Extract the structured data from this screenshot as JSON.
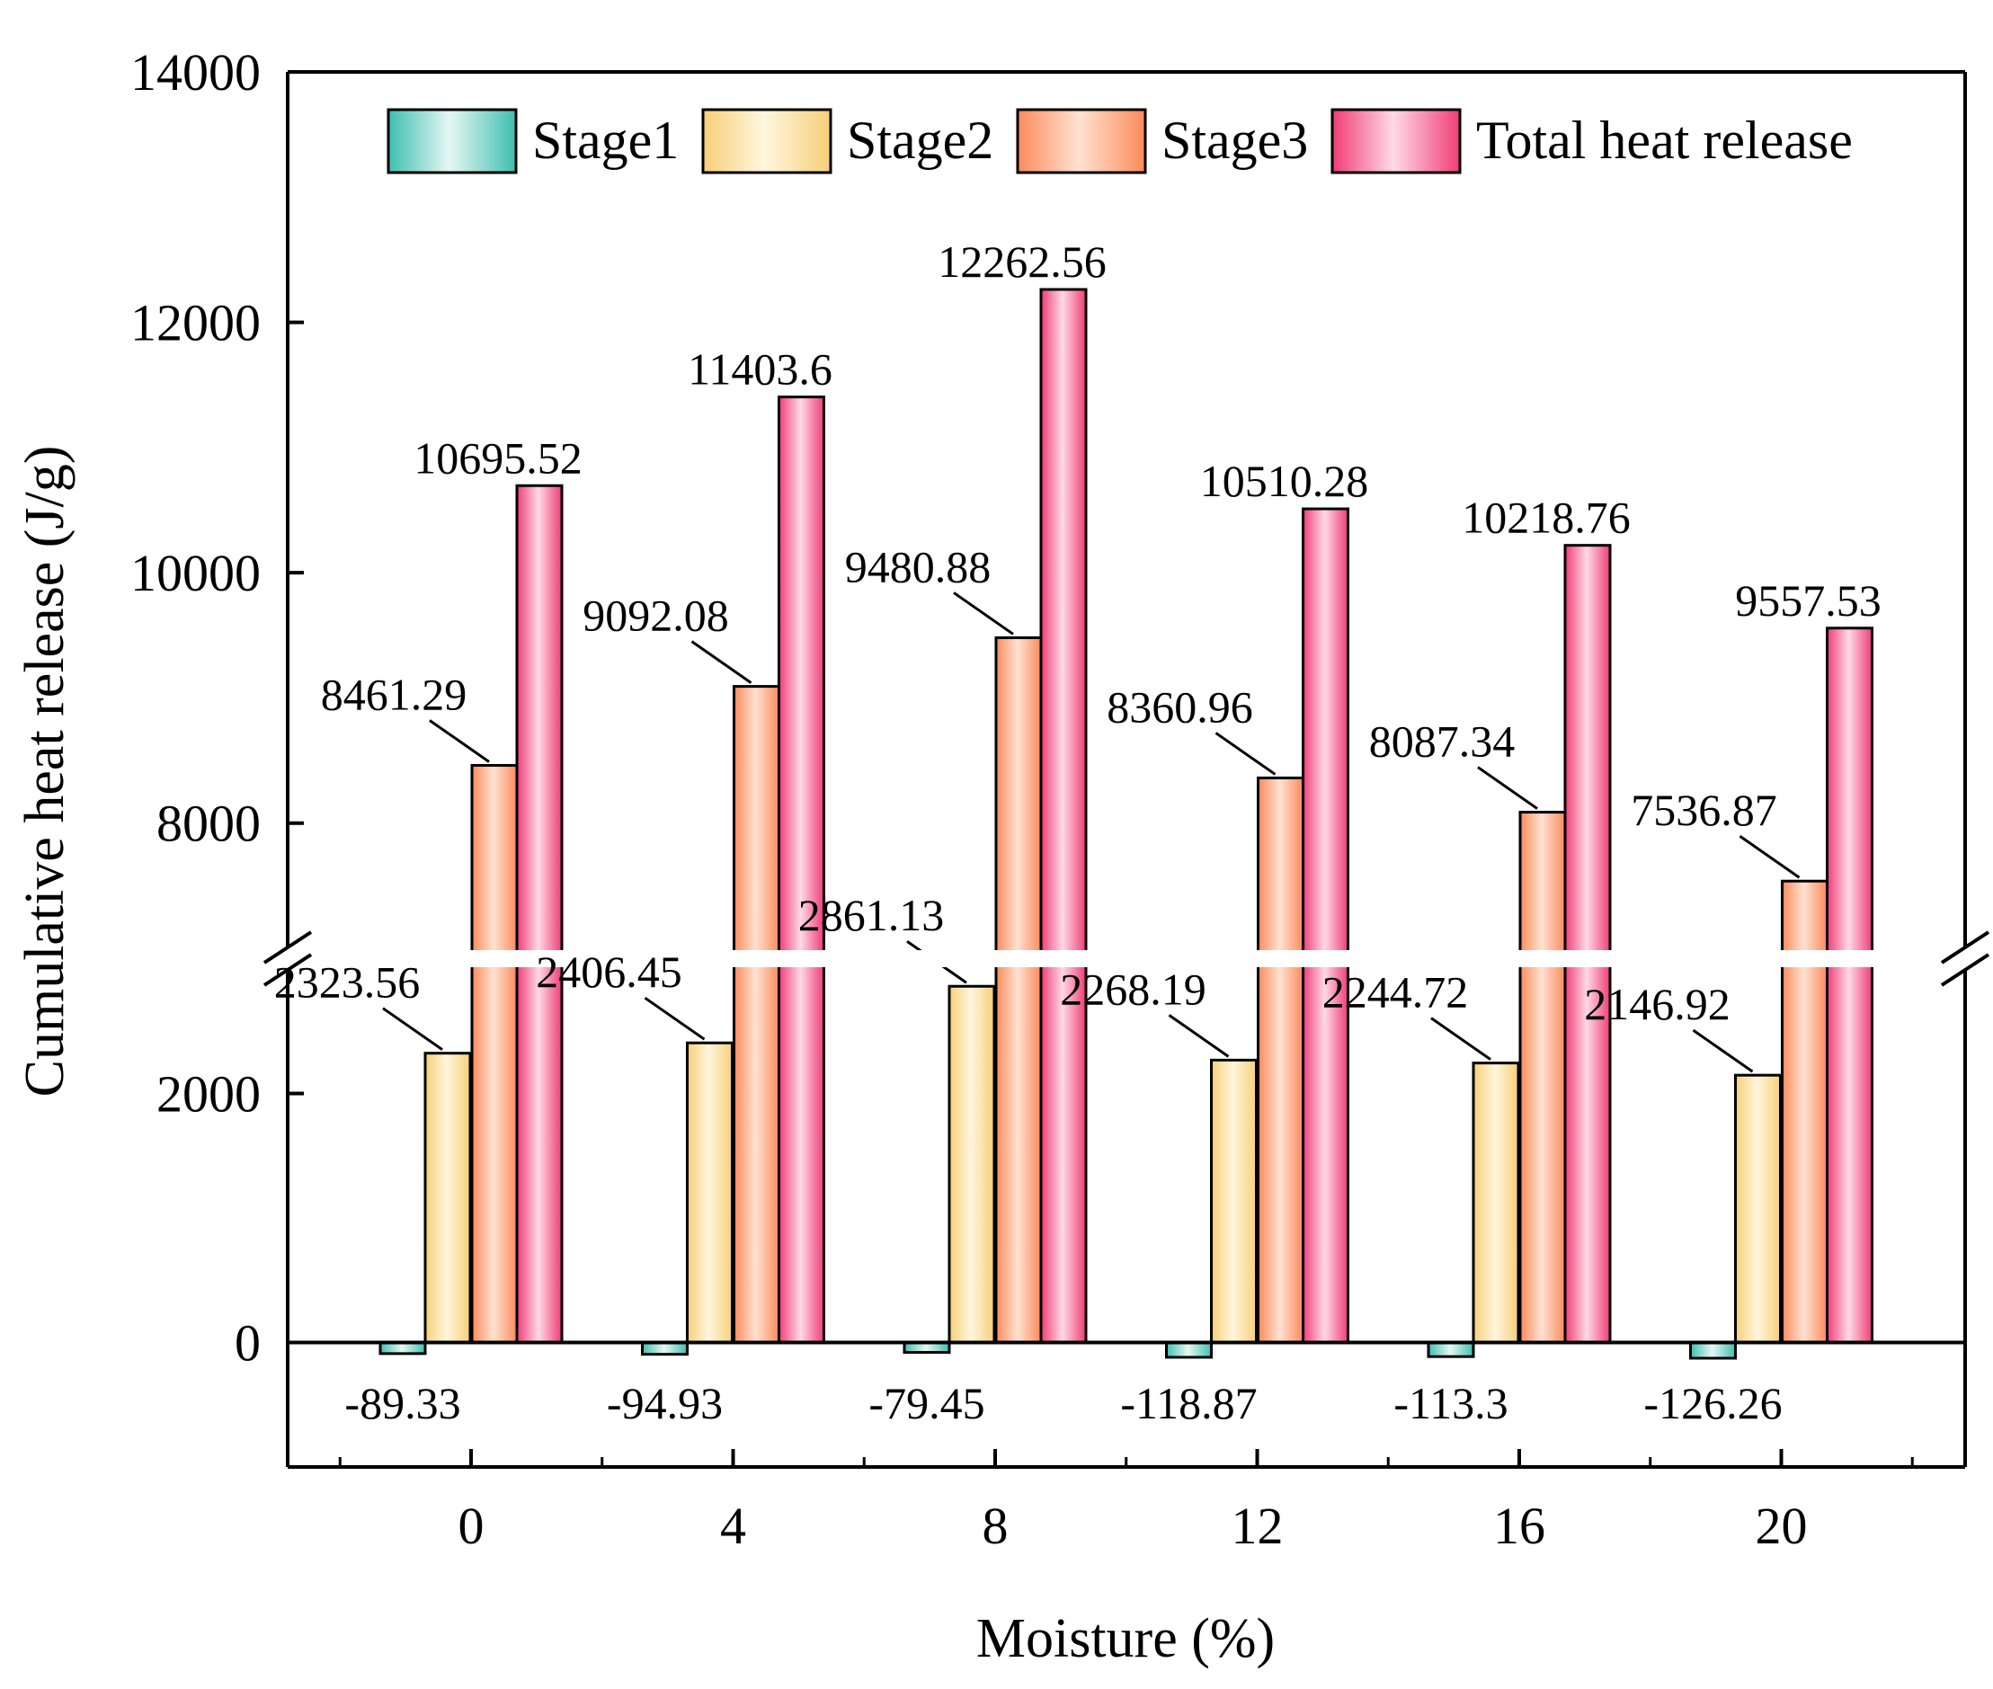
{
  "chart_data": {
    "type": "bar",
    "title": "",
    "xlabel": "Moisture (%)",
    "ylabel": "Cumulative heat release (J/g)",
    "categories": [
      "0",
      "4",
      "8",
      "12",
      "16",
      "20"
    ],
    "series": [
      {
        "name": "Stage1",
        "values": [
          -89.33,
          -94.93,
          -79.45,
          -118.87,
          -113.3,
          -126.26
        ],
        "labels": [
          "-89.33",
          "-94.93",
          "-79.45",
          "-118.87",
          "-113.3",
          "-126.26"
        ],
        "color_dark": "#3dbfb0",
        "color_light": "#e6f7f3"
      },
      {
        "name": "Stage2",
        "values": [
          2323.56,
          2406.45,
          2861.13,
          2268.19,
          2244.72,
          2146.92
        ],
        "labels": [
          "2323.56",
          "2406.45",
          "2861.13",
          "2268.19",
          "2244.72",
          "2146.92"
        ],
        "color_dark": "#f6cf77",
        "color_light": "#fff6de"
      },
      {
        "name": "Stage3",
        "values": [
          8461.29,
          9092.08,
          9480.88,
          8360.96,
          8087.34,
          7536.87
        ],
        "labels": [
          "8461.29",
          "9092.08",
          "9480.88",
          "8360.96",
          "8087.34",
          "7536.87"
        ],
        "color_dark": "#fb8a5a",
        "color_light": "#ffe2d2"
      },
      {
        "name": "Total heat release",
        "values": [
          10695.52,
          11403.6,
          12262.56,
          10510.28,
          10218.76,
          9557.53
        ],
        "labels": [
          "10695.52",
          "11403.6",
          "12262.56",
          "10510.28",
          "10218.76",
          "9557.53"
        ],
        "color_dark": "#ef3c77",
        "color_light": "#ffd9e6"
      }
    ],
    "y_axis": {
      "lower_segment_range": [
        -1000,
        3000
      ],
      "upper_segment_range": [
        7000,
        14000
      ],
      "lower_ticks": [
        "0",
        "2000"
      ],
      "upper_ticks": [
        "8000",
        "10000",
        "12000",
        "14000"
      ],
      "axis_break": true
    },
    "legend": "top, inside, single row",
    "grid": false
  }
}
